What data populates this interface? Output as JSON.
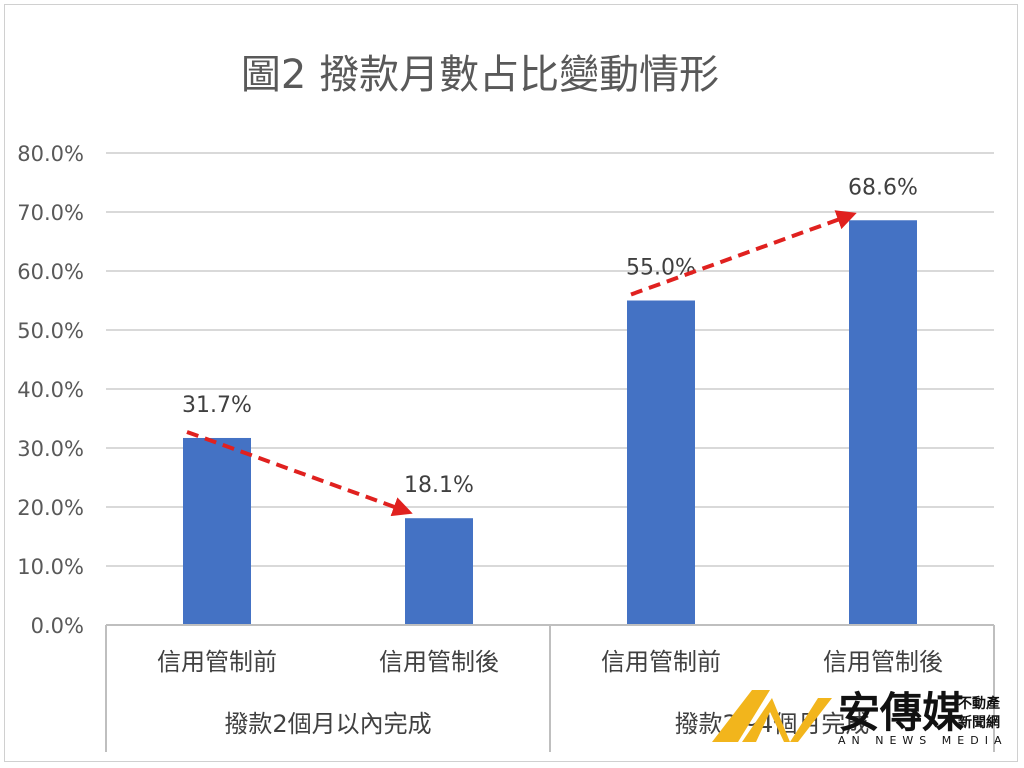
{
  "chart_data": {
    "type": "bar",
    "title": "圖2 撥款月數占比變動情形",
    "categories": [
      "信用管制前",
      "信用管制後",
      "信用管制前",
      "信用管制後"
    ],
    "groups": [
      {
        "label": "撥款2個月以內完成",
        "categories": [
          "信用管制前",
          "信用管制後"
        ]
      },
      {
        "label": "撥款2~4個月完成",
        "categories": [
          "信用管制前",
          "信用管制後"
        ]
      }
    ],
    "values": [
      31.7,
      18.1,
      55.0,
      68.6
    ],
    "data_labels": [
      "31.7%",
      "18.1%",
      "55.0%",
      "68.6%"
    ],
    "ylim": [
      0,
      80
    ],
    "yticks": [
      "0.0%",
      "10.0%",
      "20.0%",
      "30.0%",
      "40.0%",
      "50.0%",
      "60.0%",
      "70.0%",
      "80.0%"
    ],
    "grid": true,
    "annotations": [
      {
        "type": "arrow",
        "from": 0,
        "to": 1,
        "color": "#e0211f"
      },
      {
        "type": "arrow",
        "from": 2,
        "to": 3,
        "color": "#e0211f"
      }
    ],
    "bar_color": "#4472c4"
  },
  "watermark": {
    "name": "安傳媒",
    "sub_top": "不動產",
    "sub_bottom": "新聞網",
    "english": "AN NEWS MEDIA"
  }
}
